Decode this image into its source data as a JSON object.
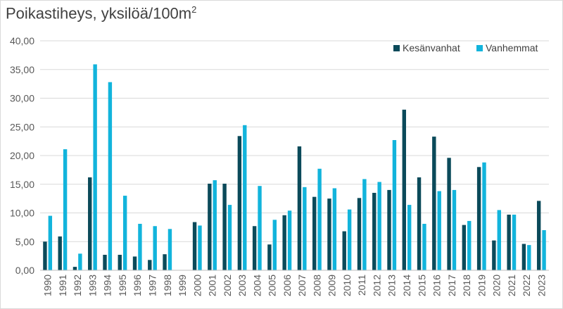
{
  "chart_data": {
    "type": "bar",
    "title": "Poikastiheys, yksilöä/100m",
    "title_superscript": "2",
    "xlabel": "",
    "ylabel": "",
    "ylim": [
      0,
      40
    ],
    "y_ticks": [
      "0,00",
      "5,00",
      "10,00",
      "15,00",
      "20,00",
      "25,00",
      "30,00",
      "35,00",
      "40,00"
    ],
    "grid": true,
    "legend_position": "top-right",
    "categories": [
      "1990",
      "1991",
      "1992",
      "1993",
      "1994",
      "1995",
      "1996",
      "1997",
      "1998",
      "1999",
      "2000",
      "2001",
      "2002",
      "2003",
      "2004",
      "2005",
      "2006",
      "2007",
      "2008",
      "2009",
      "2010",
      "2011",
      "2012",
      "2013",
      "2014",
      "2015",
      "2016",
      "2017",
      "2018",
      "2019",
      "2020",
      "2021",
      "2022",
      "2023"
    ],
    "series": [
      {
        "name": "Kesänvanhat",
        "color": "#0b4a5a",
        "values": [
          5.0,
          5.9,
          0.6,
          16.2,
          2.7,
          2.7,
          2.4,
          1.8,
          2.8,
          0,
          8.4,
          15.1,
          15.1,
          23.4,
          7.7,
          4.5,
          9.6,
          21.6,
          12.8,
          12.5,
          6.8,
          12.6,
          13.5,
          14.0,
          28.0,
          16.2,
          23.3,
          19.6,
          7.9,
          18.0,
          5.2,
          9.7,
          4.6,
          12.1
        ]
      },
      {
        "name": "Vanhemmat",
        "color": "#12b4dc",
        "values": [
          9.5,
          21.1,
          2.9,
          35.9,
          32.8,
          13.0,
          8.1,
          7.7,
          7.2,
          0,
          7.8,
          15.7,
          11.4,
          25.3,
          14.7,
          8.8,
          10.4,
          14.5,
          17.7,
          14.3,
          10.6,
          15.9,
          15.4,
          22.7,
          11.4,
          8.1,
          13.8,
          14.0,
          8.6,
          18.8,
          10.5,
          9.7,
          4.4,
          7.0
        ]
      }
    ]
  }
}
